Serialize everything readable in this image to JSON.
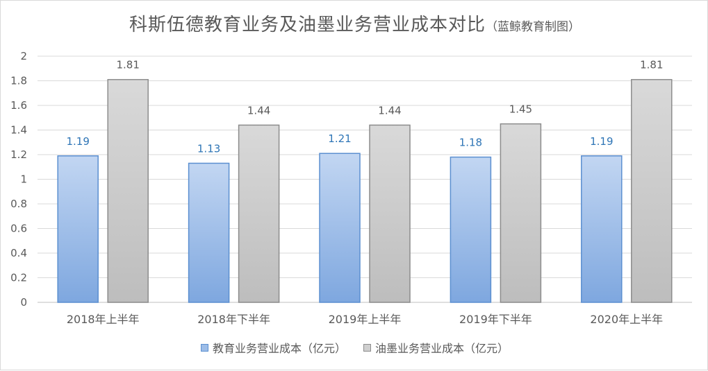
{
  "chart_data": {
    "type": "bar",
    "title": "科斯伍德教育业务及油墨业务营业成本对比",
    "subtitle": "（蓝鲸教育制图）",
    "categories": [
      "2018年上半年",
      "2018年下半年",
      "2019年上半年",
      "2019年下半年",
      "2020年上半年"
    ],
    "series": [
      {
        "name": "教育业务营业成本（亿元）",
        "values": [
          1.19,
          1.13,
          1.21,
          1.18,
          1.19
        ],
        "color": "#8fb3e3",
        "label_color": "#2e75b6"
      },
      {
        "name": "油墨业务营业成本（亿元）",
        "values": [
          1.81,
          1.44,
          1.44,
          1.45,
          1.81
        ],
        "color": "#c8c8c8",
        "label_color": "#595959"
      }
    ],
    "ylim": [
      0,
      2
    ],
    "yticks": [
      "0",
      "0.2",
      "0.4",
      "0.6",
      "0.8",
      "1",
      "1.2",
      "1.4",
      "1.6",
      "1.8",
      "2"
    ],
    "grid": true,
    "legend_position": "bottom",
    "data_labels": true
  }
}
